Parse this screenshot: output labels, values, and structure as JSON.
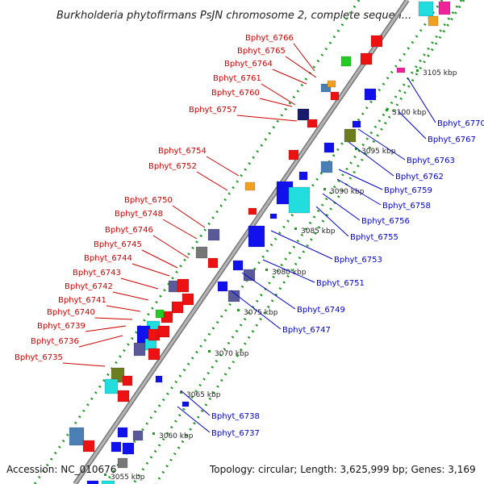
{
  "title": "Burkholderia phytofirmans PsJN chromosome 2, complete sequen...",
  "footer": {
    "accession": "Accession: NC_010676",
    "summary": "Topology: circular; Length: 3,625,999 bp; Genes: 3,169"
  },
  "scale_ticks": [
    "3055 kbp",
    "3060 kbp",
    "3065 kbp",
    "3070 kbp",
    "3075 kbp",
    "3080 kbp",
    "3085 kbp",
    "3090 kbp",
    "3095 kbp",
    "3100 kbp",
    "3105 kbp"
  ],
  "forward_labels": [
    "Bphyt_6766",
    "Bphyt_6765",
    "Bphyt_6764",
    "Bphyt_6761",
    "Bphyt_6760",
    "Bphyt_6757",
    "Bphyt_6754",
    "Bphyt_6752",
    "Bphyt_6750",
    "Bphyt_6748",
    "Bphyt_6746",
    "Bphyt_6745",
    "Bphyt_6744",
    "Bphyt_6743",
    "Bphyt_6742",
    "Bphyt_6741",
    "Bphyt_6740",
    "Bphyt_6739",
    "Bphyt_6736",
    "Bphyt_6735"
  ],
  "reverse_labels": [
    "Bphyt_6770",
    "Bphyt_6767",
    "Bphyt_6763",
    "Bphyt_6762",
    "Bphyt_6759",
    "Bphyt_6758",
    "Bphyt_6756",
    "Bphyt_6755",
    "Bphyt_6753",
    "Bphyt_6751",
    "Bphyt_6749",
    "Bphyt_6747",
    "Bphyt_6738",
    "Bphyt_6737"
  ],
  "colors": {
    "forward": "#ee1111",
    "reverse": "#1111ee",
    "cyan": "#22dddd",
    "navy": "#1a1a6e",
    "olive": "#6b7d1f",
    "green": "#22cc22",
    "orange": "#f0a020",
    "magenta": "#ee2299",
    "steel": "#4a7fb5",
    "gray": "#777777",
    "slate": "#5a5a9a"
  }
}
